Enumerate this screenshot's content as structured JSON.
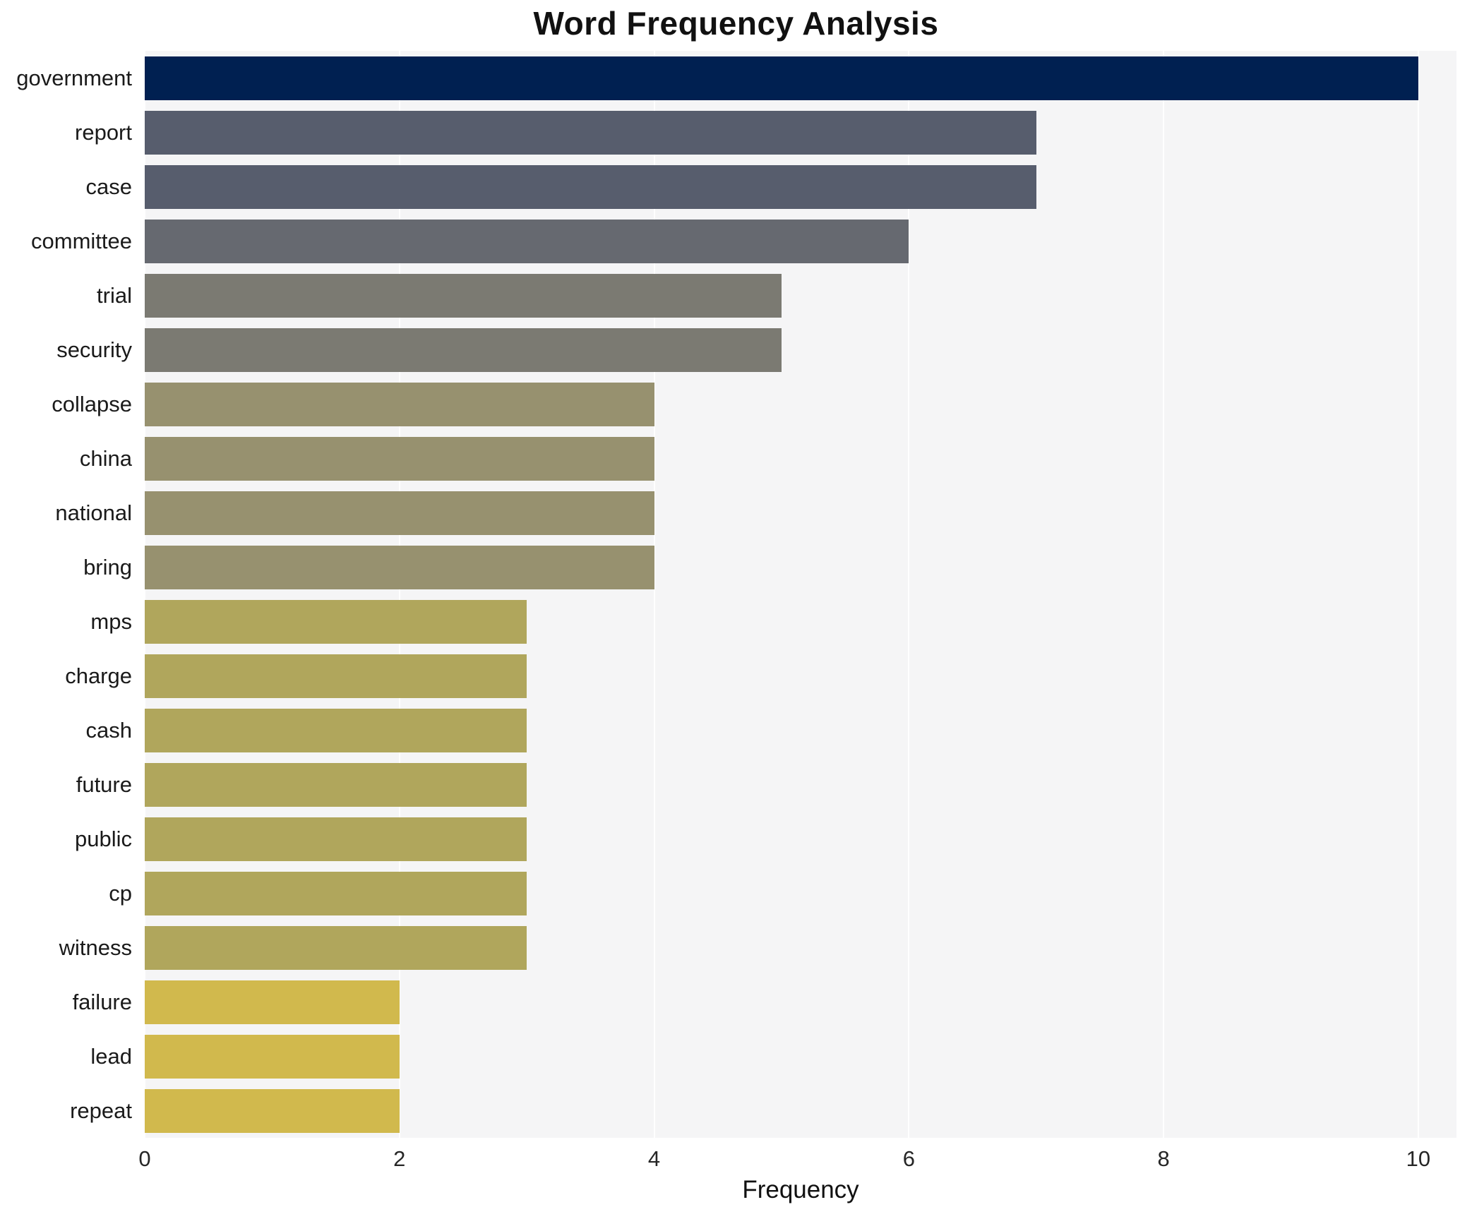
{
  "chart_data": {
    "type": "bar",
    "orientation": "horizontal",
    "title": "Word Frequency Analysis",
    "xlabel": "Frequency",
    "ylabel": "",
    "xlim": [
      0,
      10.3
    ],
    "xticks": [
      0,
      2,
      4,
      6,
      8,
      10
    ],
    "grid": true,
    "legend": "none",
    "plot_background": "#f5f5f6",
    "categories": [
      "government",
      "report",
      "case",
      "committee",
      "trial",
      "security",
      "collapse",
      "china",
      "national",
      "bring",
      "mps",
      "charge",
      "cash",
      "future",
      "public",
      "cp",
      "witness",
      "failure",
      "lead",
      "repeat"
    ],
    "values": [
      10,
      7,
      7,
      6,
      5,
      5,
      4,
      4,
      4,
      4,
      3,
      3,
      3,
      3,
      3,
      3,
      3,
      2,
      2,
      2
    ],
    "bar_colors": [
      "#002051",
      "#575d6d",
      "#575d6d",
      "#666970",
      "#7b7a72",
      "#7b7a72",
      "#97916f",
      "#97916f",
      "#97916f",
      "#97916f",
      "#b0a65c",
      "#b0a65c",
      "#b0a65c",
      "#b0a65c",
      "#b0a65c",
      "#b0a65c",
      "#b0a65c",
      "#d1b94d",
      "#d1b94d",
      "#d1b94d"
    ]
  }
}
